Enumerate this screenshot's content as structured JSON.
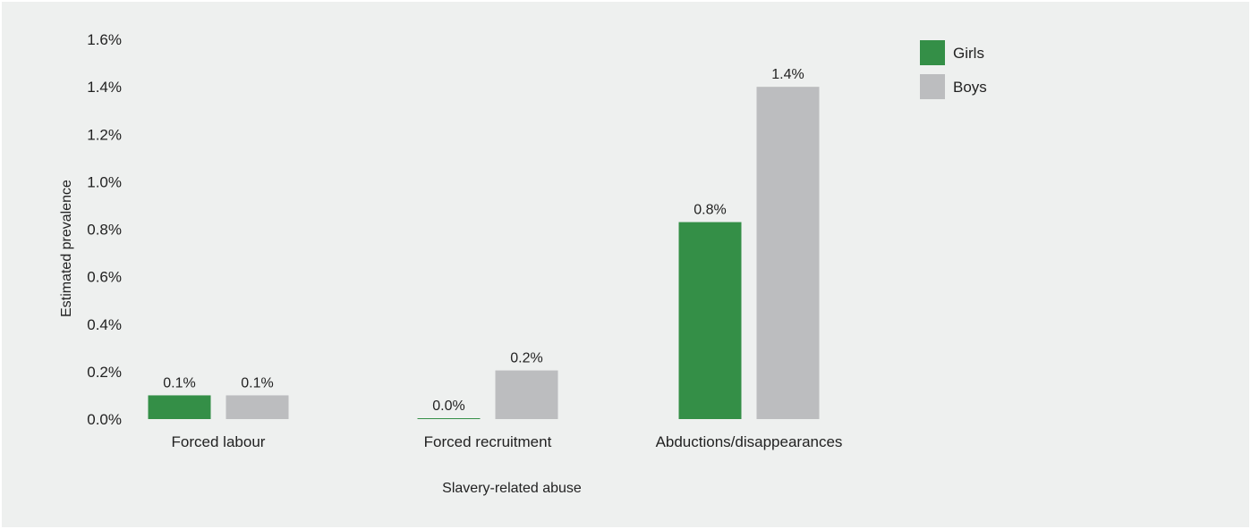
{
  "chart_data": {
    "type": "bar",
    "categories": [
      "Forced labour",
      "Forced recruitment",
      "Abductions/disappearances"
    ],
    "series": [
      {
        "name": "Girls",
        "color": "#348f47",
        "values": [
          0.1,
          0.0,
          0.8
        ],
        "labels": [
          "0.1%",
          "0.0%",
          "0.8%"
        ]
      },
      {
        "name": "Boys",
        "color": "#bcbdbf",
        "values": [
          0.1,
          0.2,
          1.4
        ],
        "labels": [
          "0.1%",
          "0.2%",
          "1.4%"
        ]
      }
    ],
    "plot_values": [
      [
        0.1,
        0.0,
        0.83
      ],
      [
        0.1,
        0.205,
        1.4
      ]
    ],
    "xlabel": "Slavery-related abuse",
    "ylabel": "Estimated prevalence",
    "ylim": [
      0,
      1.6
    ],
    "yticks": [
      0.0,
      0.2,
      0.4,
      0.6,
      0.8,
      1.0,
      1.2,
      1.4,
      1.6
    ],
    "ytick_labels": [
      "0.0%",
      "0.2%",
      "0.4%",
      "0.6%",
      "0.8%",
      "1.0%",
      "1.2%",
      "1.4%",
      "1.6%"
    ],
    "grid": false,
    "legend_position": "top-right"
  }
}
